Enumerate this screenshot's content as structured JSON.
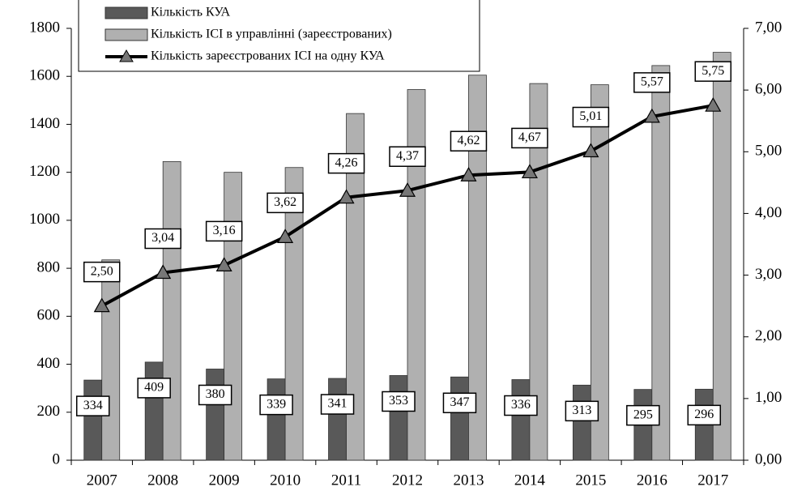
{
  "chart_data": {
    "type": "bar_line",
    "categories": [
      "2007",
      "2008",
      "2009",
      "2010",
      "2011",
      "2012",
      "2013",
      "2014",
      "2015",
      "2016",
      "2017"
    ],
    "series": [
      {
        "name": "Кількість КУА",
        "color": "#595959",
        "type": "bar",
        "values": [
          334,
          409,
          380,
          339,
          341,
          353,
          347,
          336,
          313,
          295,
          296
        ]
      },
      {
        "name": "Кількість ІСІ в управлінні (зареєстрованих)",
        "color": "#b0b0b0",
        "type": "bar",
        "values": [
          835,
          1245,
          1200,
          1220,
          1445,
          1545,
          1605,
          1570,
          1565,
          1645,
          1700
        ]
      },
      {
        "name": "Кількість зареєстрованих ІСІ на одну КУА",
        "color": "#000000",
        "type": "line",
        "axis": "y2",
        "values": [
          2.5,
          3.04,
          3.16,
          3.62,
          4.26,
          4.37,
          4.62,
          4.67,
          5.01,
          5.57,
          5.75
        ],
        "value_labels": [
          "2,50",
          "3,04",
          "3,16",
          "3,62",
          "4,26",
          "4,37",
          "4,62",
          "4,67",
          "5,01",
          "5,57",
          "5,75"
        ]
      }
    ],
    "ylim": [
      0,
      1800
    ],
    "yticks": [
      0,
      200,
      400,
      600,
      800,
      1000,
      1200,
      1400,
      1600,
      1800
    ],
    "y2lim": [
      0,
      7
    ],
    "y2ticks": [
      {
        "value": 0,
        "label": "0,00"
      },
      {
        "value": 1,
        "label": "1,00"
      },
      {
        "value": 2,
        "label": "2,00"
      },
      {
        "value": 3,
        "label": "3,00"
      },
      {
        "value": 4,
        "label": "4,00"
      },
      {
        "value": 5,
        "label": "5,00"
      },
      {
        "value": 6,
        "label": "6,00"
      },
      {
        "value": 7,
        "label": "7,00"
      }
    ],
    "legend": "top-left"
  }
}
